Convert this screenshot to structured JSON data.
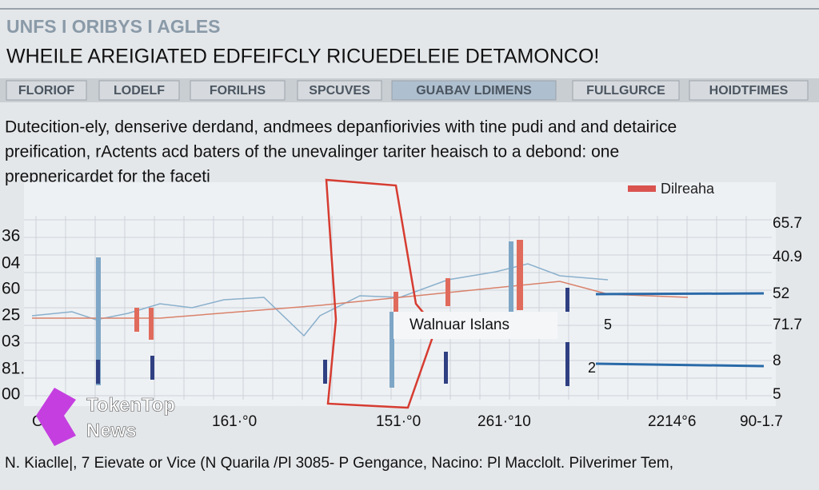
{
  "header": {
    "brand": "UNFS I ORIBYS I AGLES",
    "headline": "WHEILE AREIGIATED EDFEIFCLY RICUEDELEIE DETAMONCO!"
  },
  "nav": [
    "FLORIOF",
    "LODELF",
    "FORILHS",
    "SPCUVES",
    "GUABAV LDIMENS",
    "FULLGURCE",
    "HOIDTFIMES"
  ],
  "paragraph": [
    "Dutecition-ely, denserive derdand, andmees depanfiorivies with tine pudi and and detairice",
    "preification, rActents acd baters of the unevalinger tariter heaisch to a debond: one",
    "prepnericardet for the faceti"
  ],
  "chart": {
    "legend": "Dilreaha",
    "left_axis": [
      "36",
      "04",
      "60",
      "25",
      "03",
      "81.",
      "00"
    ],
    "right_axis": [
      "65.7",
      "40.9",
      "52",
      "71.7",
      "8",
      "5"
    ],
    "x_axis": [
      "OLP",
      "161·°0",
      "151·°0",
      "261·°10",
      "2214°6",
      "90-1.7"
    ],
    "annotation": "Walnuar Islans",
    "markers": [
      "5",
      "2"
    ]
  },
  "logo": {
    "line1": "TokenTop",
    "line2": "News"
  },
  "footer": "N. Kiaclle|, 7 Eievate or Vice (N Quarila /Pl 3085- P Gengance, Nacino: Pl Macclolt. Pilverimer Tem,"
}
